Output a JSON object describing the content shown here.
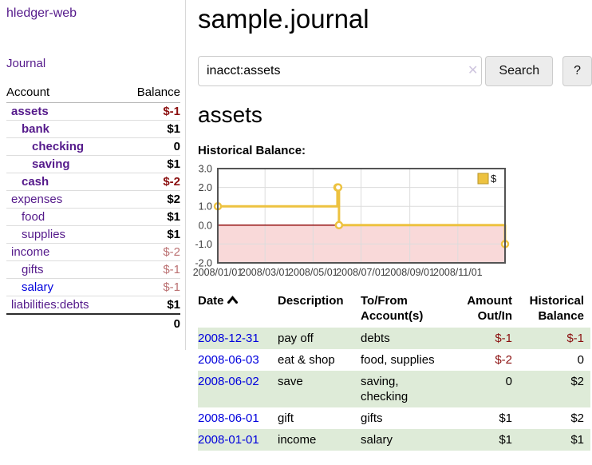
{
  "sidebar": {
    "title": "hledger-web",
    "nav_journal": "Journal",
    "table": {
      "headers": [
        "Account",
        "Balance"
      ],
      "rows": [
        {
          "name": "assets",
          "indent": 0,
          "bold": true,
          "balance": "$-1",
          "neg": "strong"
        },
        {
          "name": "bank",
          "indent": 1,
          "bold": true,
          "balance": "$1"
        },
        {
          "name": "checking",
          "indent": 2,
          "bold": true,
          "balance": "0"
        },
        {
          "name": "saving",
          "indent": 2,
          "bold": true,
          "balance": "$1"
        },
        {
          "name": "cash",
          "indent": 1,
          "bold": true,
          "balance": "$-2",
          "neg": "strong"
        },
        {
          "name": "expenses",
          "indent": 0,
          "bold": false,
          "balance": "$2"
        },
        {
          "name": "food",
          "indent": 1,
          "bold": false,
          "balance": "$1"
        },
        {
          "name": "supplies",
          "indent": 1,
          "bold": false,
          "balance": "$1"
        },
        {
          "name": "income",
          "indent": 0,
          "bold": false,
          "balance": "$-2",
          "neg": "soft"
        },
        {
          "name": "gifts",
          "indent": 1,
          "bold": false,
          "balance": "$-1",
          "neg": "soft"
        },
        {
          "name": "salary",
          "indent": 1,
          "bold": false,
          "blue": true,
          "balance": "$-1",
          "neg": "soft"
        },
        {
          "name": "liabilities:debts",
          "indent": 0,
          "bold": false,
          "balance": "$1"
        }
      ],
      "total": "0"
    }
  },
  "header": {
    "title": "sample.journal"
  },
  "search": {
    "value": "inacct:assets",
    "clear_icon": "✕",
    "button_label": "Search",
    "help_label": "?"
  },
  "account_page": {
    "heading": "assets",
    "chart_title": "Historical Balance:"
  },
  "chart_data": {
    "type": "line",
    "style": "step",
    "title": "Historical Balance:",
    "series": [
      {
        "name": "$",
        "color": "#edc240",
        "points": [
          [
            "2008-01-01",
            1
          ],
          [
            "2008-06-01",
            2
          ],
          [
            "2008-06-02",
            2
          ],
          [
            "2008-06-03",
            0
          ],
          [
            "2008-12-31",
            -1
          ]
        ]
      }
    ],
    "x_range": [
      "2008-01-01",
      "2008-12-31"
    ],
    "ylim": [
      -2,
      3
    ],
    "y_ticks": [
      3.0,
      2.0,
      1.0,
      0.0,
      -1.0,
      -2.0
    ],
    "x_tick_dates": [
      "2008-01-01",
      "2008-03-01",
      "2008-05-01",
      "2008-07-01",
      "2008-09-01",
      "2008-11-01"
    ],
    "x_tick_labels": [
      "2008/01/01",
      "2008/03/01",
      "2008/05/01",
      "2008/07/01",
      "2008/09/01",
      "2008/11/01"
    ],
    "legend": {
      "label": "$",
      "position": "top-right"
    },
    "grid": true,
    "negative_region_color": "#f9d9d9",
    "zero_line_color": "#8b0000",
    "border_color": "#545454",
    "gridline_color": "#dcdcdc"
  },
  "register": {
    "headers": [
      "Date",
      "Description",
      "To/From\nAccount(s)",
      "Amount\nOut/In",
      "Historical\nBalance"
    ],
    "sort": "date-ascending",
    "rows": [
      {
        "date": "2008-12-31",
        "description": "pay off",
        "accounts": "debts",
        "amount": "$-1",
        "amount_neg": true,
        "balance": "$-1",
        "balance_neg": true
      },
      {
        "date": "2008-06-03",
        "description": "eat & shop",
        "accounts": "food, supplies",
        "amount": "$-2",
        "amount_neg": true,
        "balance": "0",
        "balance_neg": false
      },
      {
        "date": "2008-06-02",
        "description": "save",
        "accounts": "saving, checking",
        "amount": "0",
        "amount_neg": false,
        "balance": "$2",
        "balance_neg": false
      },
      {
        "date": "2008-06-01",
        "description": "gift",
        "accounts": "gifts",
        "amount": "$1",
        "amount_neg": false,
        "balance": "$2",
        "balance_neg": false
      },
      {
        "date": "2008-01-01",
        "description": "income",
        "accounts": "salary",
        "amount": "$1",
        "amount_neg": false,
        "balance": "$1",
        "balance_neg": false
      }
    ]
  }
}
